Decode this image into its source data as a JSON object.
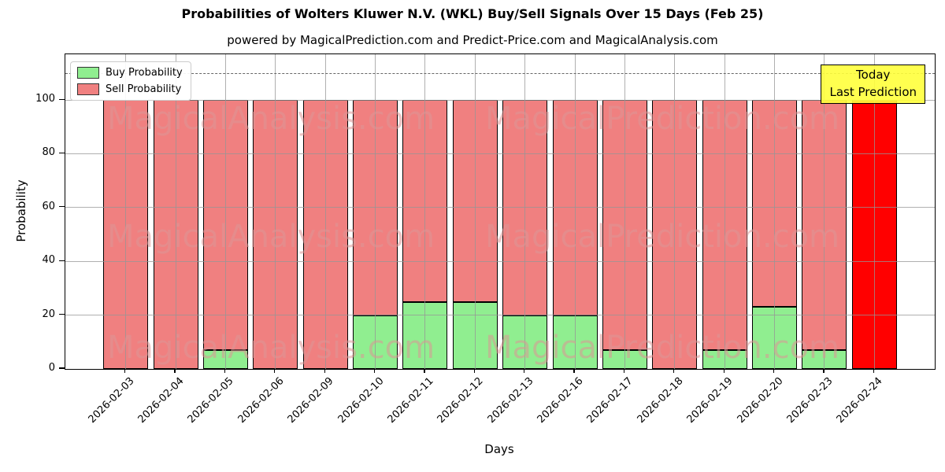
{
  "title": "Probabilities of Wolters Kluwer N.V. (WKL) Buy/Sell Signals Over 15 Days (Feb 25)",
  "subtitle": "powered by MagicalPrediction.com and Predict-Price.com and MagicalAnalysis.com",
  "annotation": {
    "line1": "Today",
    "line2": "Last Prediction"
  },
  "legend": [
    {
      "label": "Buy Probability",
      "color": "#90EE90"
    },
    {
      "label": "Sell Probability",
      "color": "#F08080"
    }
  ],
  "watermarks": {
    "left_text": "MagicalAnalysis.com",
    "right_text": "MagicalPrediction.com"
  },
  "chart_data": {
    "type": "bar",
    "stacked": true,
    "title": "Probabilities of Wolters Kluwer N.V. (WKL) Buy/Sell Signals Over 15 Days (Feb 25)",
    "xlabel": "Days",
    "ylabel": "Probability",
    "categories": [
      "2026-02-03",
      "2026-02-04",
      "2026-02-05",
      "2026-02-06",
      "2026-02-09",
      "2026-02-10",
      "2026-02-11",
      "2026-02-12",
      "2026-02-13",
      "2026-02-16",
      "2026-02-17",
      "2026-02-18",
      "2026-02-19",
      "2026-02-20",
      "2026-02-23",
      "2026-02-24"
    ],
    "series": [
      {
        "name": "Buy Probability",
        "color": "#90EE90",
        "values": [
          0,
          0,
          7,
          0,
          0,
          20,
          25,
          25,
          20,
          20,
          7,
          0,
          7,
          23,
          7,
          0
        ]
      },
      {
        "name": "Sell Probability",
        "color": "#F08080",
        "values": [
          100,
          100,
          93,
          100,
          100,
          80,
          75,
          75,
          80,
          80,
          93,
          100,
          93,
          77,
          93,
          100
        ]
      }
    ],
    "last_bar": {
      "category": "2026-02-24",
      "sell_color": "#FF0000",
      "note": "Today / Last Prediction"
    },
    "ylim": [
      0,
      117
    ],
    "yticks": [
      0,
      20,
      40,
      60,
      80,
      100
    ],
    "dashed_line_y": 110,
    "grid": true,
    "grid_above_bars": true,
    "legend_position": "upper left",
    "bar_edge_color": "#000000"
  }
}
